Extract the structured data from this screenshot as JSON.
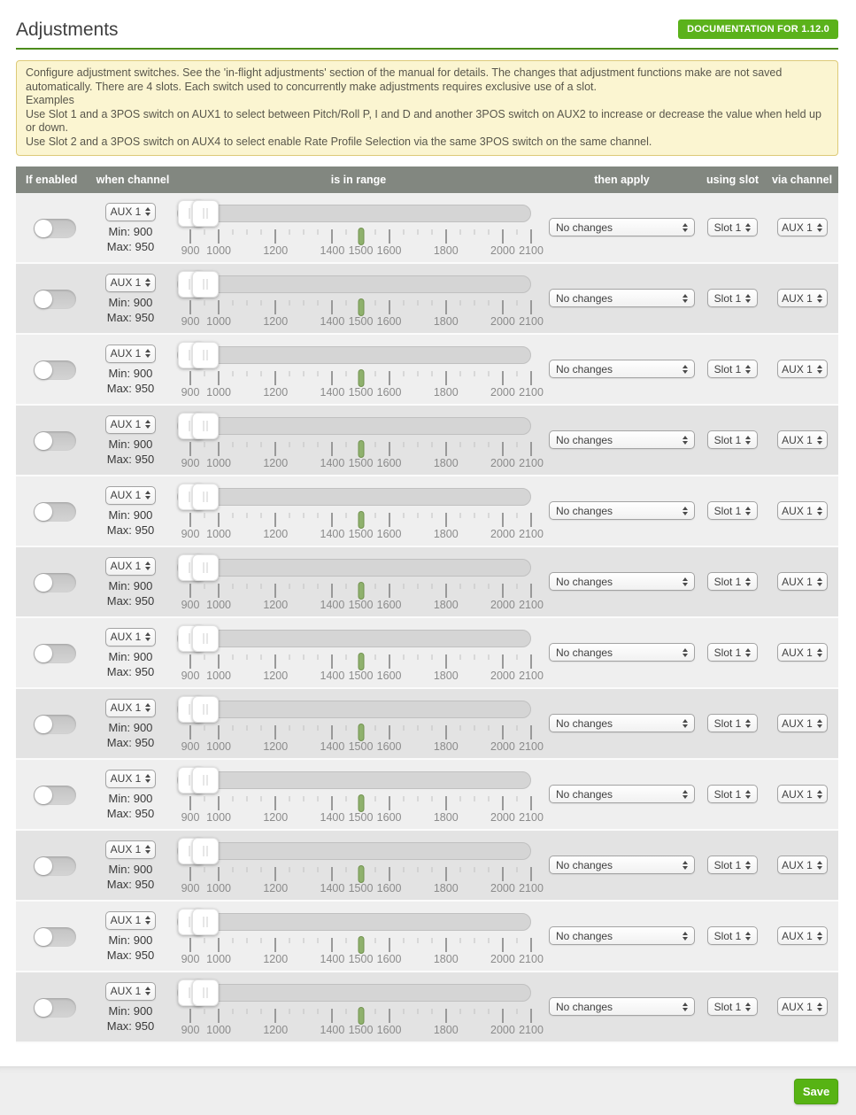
{
  "page": {
    "title": "Adjustments",
    "doc_button_label": "DOCUMENTATION FOR 1.12.0",
    "save_button_label": "Save"
  },
  "note": {
    "lines": [
      "Configure adjustment switches. See the 'in-flight adjustments' section of the manual for details. The changes that adjustment functions make are not saved automatically. There are 4 slots. Each switch used to concurrently make adjustments requires exclusive use of a slot.",
      "Examples",
      "Use Slot 1 and a 3POS switch on AUX1 to select between Pitch/Roll P, I and D and another 3POS switch on AUX2 to increase or decrease the value when held up or down.",
      "Use Slot 2 and a 3POS switch on AUX4 to select enable Rate Profile Selection via the same 3POS switch on the same channel."
    ]
  },
  "table": {
    "headers": [
      "If enabled",
      "when channel",
      "is in range",
      "then apply",
      "using slot",
      "via channel"
    ]
  },
  "slider": {
    "min": 900,
    "max": 2100,
    "handle_min": 900,
    "handle_max": 950,
    "marker": 1500,
    "minor_step": 50,
    "major_ticks": [
      900,
      1000,
      1200,
      1400,
      1600,
      1800,
      2000,
      2100
    ],
    "labels": [
      "900",
      "1000",
      "1200",
      "1400",
      "1500",
      "1600",
      "1800",
      "2000",
      "2100"
    ]
  },
  "rows": [
    {
      "enabled": false,
      "channel": "AUX 1",
      "min_label": "Min: 900",
      "max_label": "Max: 950",
      "apply": "No changes",
      "slot": "Slot 1",
      "via": "AUX 1"
    },
    {
      "enabled": false,
      "channel": "AUX 1",
      "min_label": "Min: 900",
      "max_label": "Max: 950",
      "apply": "No changes",
      "slot": "Slot 1",
      "via": "AUX 1"
    },
    {
      "enabled": false,
      "channel": "AUX 1",
      "min_label": "Min: 900",
      "max_label": "Max: 950",
      "apply": "No changes",
      "slot": "Slot 1",
      "via": "AUX 1"
    },
    {
      "enabled": false,
      "channel": "AUX 1",
      "min_label": "Min: 900",
      "max_label": "Max: 950",
      "apply": "No changes",
      "slot": "Slot 1",
      "via": "AUX 1"
    },
    {
      "enabled": false,
      "channel": "AUX 1",
      "min_label": "Min: 900",
      "max_label": "Max: 950",
      "apply": "No changes",
      "slot": "Slot 1",
      "via": "AUX 1"
    },
    {
      "enabled": false,
      "channel": "AUX 1",
      "min_label": "Min: 900",
      "max_label": "Max: 950",
      "apply": "No changes",
      "slot": "Slot 1",
      "via": "AUX 1"
    },
    {
      "enabled": false,
      "channel": "AUX 1",
      "min_label": "Min: 900",
      "max_label": "Max: 950",
      "apply": "No changes",
      "slot": "Slot 1",
      "via": "AUX 1"
    },
    {
      "enabled": false,
      "channel": "AUX 1",
      "min_label": "Min: 900",
      "max_label": "Max: 950",
      "apply": "No changes",
      "slot": "Slot 1",
      "via": "AUX 1"
    },
    {
      "enabled": false,
      "channel": "AUX 1",
      "min_label": "Min: 900",
      "max_label": "Max: 950",
      "apply": "No changes",
      "slot": "Slot 1",
      "via": "AUX 1"
    },
    {
      "enabled": false,
      "channel": "AUX 1",
      "min_label": "Min: 900",
      "max_label": "Max: 950",
      "apply": "No changes",
      "slot": "Slot 1",
      "via": "AUX 1"
    },
    {
      "enabled": false,
      "channel": "AUX 1",
      "min_label": "Min: 900",
      "max_label": "Max: 950",
      "apply": "No changes",
      "slot": "Slot 1",
      "via": "AUX 1"
    },
    {
      "enabled": false,
      "channel": "AUX 1",
      "min_label": "Min: 900",
      "max_label": "Max: 950",
      "apply": "No changes",
      "slot": "Slot 1",
      "via": "AUX 1"
    }
  ],
  "colors": {
    "accent_green": "#5bb21b",
    "title_underline_green": "#4c8c1c",
    "table_header_gray": "#828780",
    "note_bg": "#fbf5d1",
    "note_border": "#ddca78",
    "row_light": "#efefef",
    "row_dark": "#e3e3e3",
    "marker_green": "#8fb16d"
  }
}
